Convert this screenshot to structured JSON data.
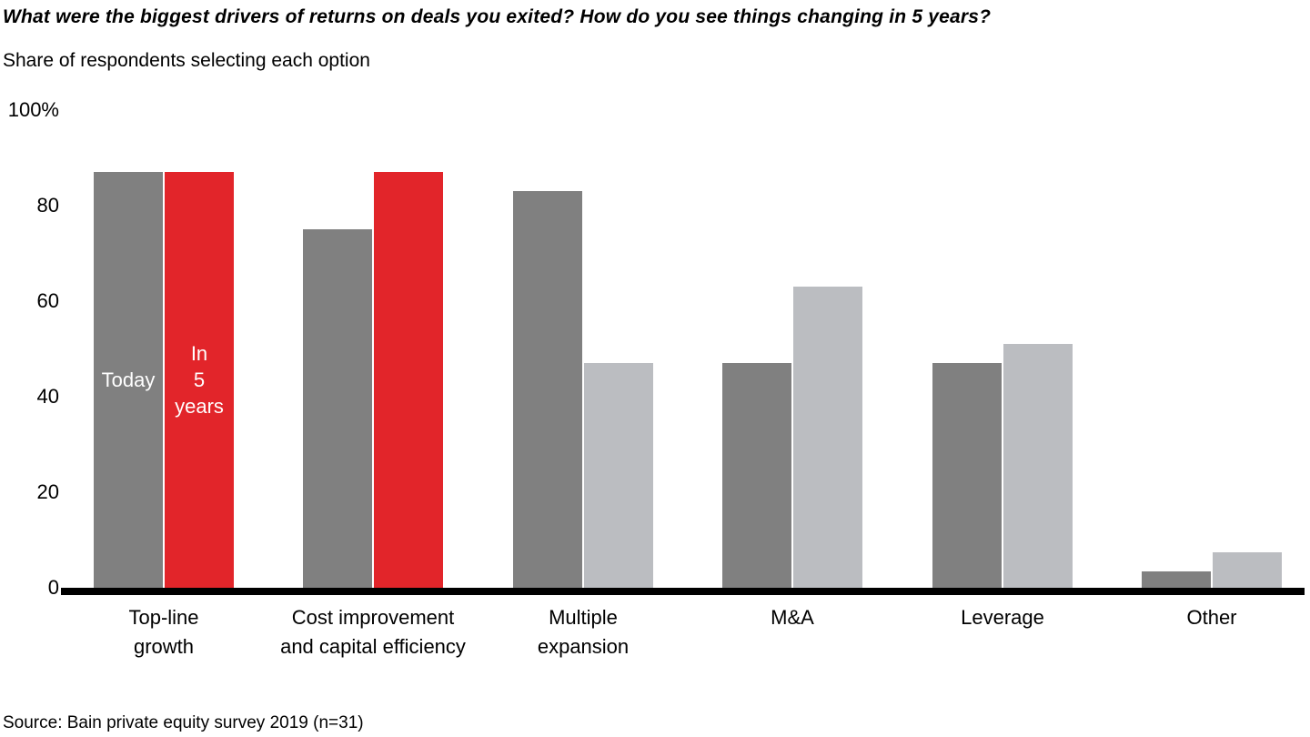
{
  "chart_data": {
    "type": "bar",
    "title": "What were the biggest drivers of returns on deals you exited? How do you see things changing in 5 years?",
    "subtitle": "Share of respondents selecting each option",
    "source": "Source: Bain private equity survey 2019 (n=31)",
    "xlabel": "",
    "ylabel": "Share of respondents selecting each option",
    "ylim": [
      0,
      100
    ],
    "grid": false,
    "legend_position": "inside-first-bars",
    "categories": [
      "Top-line\ngrowth",
      "Cost improvement\nand capital efficiency",
      "Multiple\nexpansion",
      "M&A",
      "Leverage",
      "Other"
    ],
    "series": [
      {
        "name": "Today",
        "values": [
          87,
          75,
          83,
          47,
          47,
          3.5
        ]
      },
      {
        "name": "In 5 years",
        "values": [
          87,
          87,
          47,
          63,
          51,
          7.5
        ]
      }
    ],
    "highlight_categories": [
      0,
      1
    ],
    "bar_labels": {
      "today": "Today",
      "in5": "In\n5\nyears"
    },
    "yticks": [
      {
        "value": 100,
        "label": "100%"
      },
      {
        "value": 80,
        "label": "80"
      },
      {
        "value": 60,
        "label": "60"
      },
      {
        "value": 40,
        "label": "40"
      },
      {
        "value": 20,
        "label": "20"
      },
      {
        "value": 0,
        "label": "0"
      }
    ]
  },
  "colors": {
    "today_bar": "#808080",
    "in5_highlight_bar": "#e2252a",
    "in5_normal_bar": "#bbbdc1",
    "axis": "#000000",
    "bar_label_text": "#ffffff",
    "text": "#000000",
    "background": "#ffffff"
  }
}
